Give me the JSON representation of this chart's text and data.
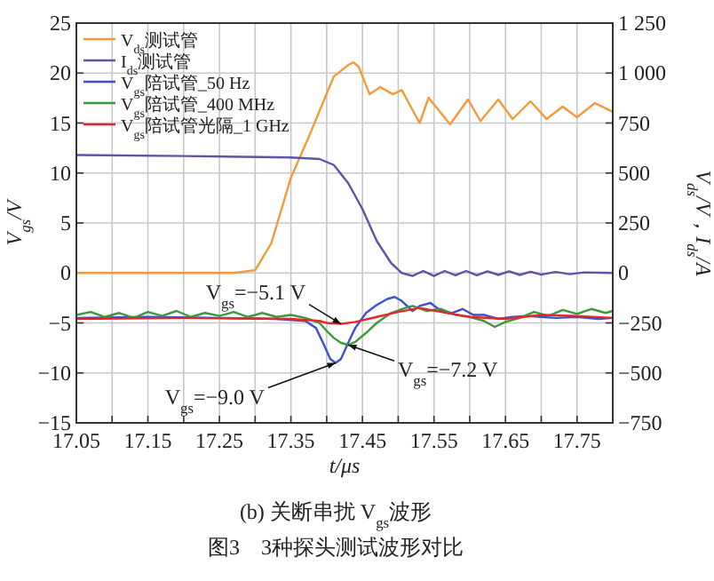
{
  "chart_data": {
    "type": "line",
    "xlabel": "t/μs",
    "ylabel": "V$_{gs}$/V",
    "y2label": "V$_{ds}$/V，I$_{ds}$/A",
    "xlim": [
      17.05,
      17.8
    ],
    "xticks": [
      17.05,
      {
        "value": 17.1,
        "label": null
      },
      17.15,
      {
        "value": 17.2,
        "label": null
      },
      17.25,
      {
        "value": 17.3,
        "label": null
      },
      17.35,
      {
        "value": 17.4,
        "label": null
      },
      17.45,
      {
        "value": 17.5,
        "label": null
      },
      17.55,
      {
        "value": 17.6,
        "label": null
      },
      17.65,
      {
        "value": 17.7,
        "label": null
      },
      17.75
    ],
    "ylim": [
      -15,
      25
    ],
    "yticks": [
      {
        "value": -15,
        "label": "−15"
      },
      {
        "value": -10,
        "label": "−10"
      },
      {
        "value": -5,
        "label": "−5"
      },
      0,
      5,
      10,
      15,
      20,
      25
    ],
    "y2lim": [
      -750,
      1250
    ],
    "y2ticks": [
      {
        "value": -750,
        "label": "−750"
      },
      {
        "value": -500,
        "label": "−500"
      },
      {
        "value": -250,
        "label": "−250"
      },
      0,
      250,
      500,
      750,
      {
        "value": 1000,
        "label": "1 000"
      },
      {
        "value": 1250,
        "label": "1 250"
      }
    ],
    "grid": true,
    "legend": "top left",
    "series": [
      {
        "name": "V$_{ds}$测试管",
        "color": "#f39a3a",
        "axis": "y2",
        "x": [
          17.05,
          17.27,
          17.3,
          17.3225,
          17.35,
          17.375,
          17.41,
          17.43,
          17.4375,
          17.445,
          17.46,
          17.475,
          17.4925,
          17.505,
          17.53,
          17.5425,
          17.5725,
          17.5975,
          17.615,
          17.64,
          17.66,
          17.685,
          17.7075,
          17.73,
          17.75,
          17.775,
          17.8
        ],
        "values": [
          0,
          0,
          14,
          148,
          477,
          681,
          983,
          1040,
          1054,
          1030,
          894,
          930,
          894,
          915,
          750,
          877,
          743,
          868,
          760,
          868,
          770,
          859,
          770,
          832,
          779,
          850,
          806
        ]
      },
      {
        "name": "I$_{ds}$测试管",
        "color": "#5a55a8",
        "axis": "y2",
        "x": [
          17.05,
          17.2,
          17.35,
          17.39,
          17.41,
          17.43,
          17.45,
          17.47,
          17.49,
          17.505,
          17.52,
          17.535,
          17.55,
          17.565,
          17.58,
          17.595,
          17.61,
          17.625,
          17.64,
          17.655,
          17.67,
          17.685,
          17.7,
          17.72,
          17.74,
          17.76,
          17.8
        ],
        "values": [
          590,
          585,
          578,
          570,
          540,
          450,
          320,
          160,
          50,
          0,
          -15,
          10,
          -15,
          10,
          -12,
          10,
          -12,
          8,
          -10,
          8,
          -10,
          6,
          -8,
          5,
          -6,
          3,
          0
        ]
      },
      {
        "name": "V$_{gs}$陪试管_50 Hz",
        "color": "#3c50d0",
        "x": [
          17.05,
          17.15,
          17.25,
          17.33,
          17.37,
          17.385,
          17.395,
          17.405,
          17.4125,
          17.42,
          17.43,
          17.44,
          17.455,
          17.47,
          17.485,
          17.495,
          17.505,
          17.52,
          17.53,
          17.545,
          17.56,
          17.575,
          17.59,
          17.605,
          17.62,
          17.64,
          17.66,
          17.68,
          17.7,
          17.72,
          17.75,
          17.78,
          17.8
        ],
        "values": [
          -4.5,
          -4.4,
          -4.5,
          -4.6,
          -4.8,
          -5.5,
          -7.0,
          -8.6,
          -9.0,
          -8.6,
          -7.0,
          -5.5,
          -4.0,
          -3.2,
          -2.6,
          -2.4,
          -2.8,
          -3.8,
          -3.3,
          -3.0,
          -3.8,
          -4.0,
          -3.6,
          -4.2,
          -4.2,
          -4.6,
          -4.4,
          -4.3,
          -4.4,
          -4.5,
          -4.4,
          -4.6,
          -4.5
        ]
      },
      {
        "name": "V$_{gs}$陪试管_400 MHz",
        "color": "#3a9a3a",
        "x": [
          17.05,
          17.07,
          17.09,
          17.11,
          17.13,
          17.15,
          17.17,
          17.19,
          17.21,
          17.23,
          17.25,
          17.27,
          17.29,
          17.31,
          17.33,
          17.35,
          17.37,
          17.39,
          17.4,
          17.41,
          17.42,
          17.43,
          17.44,
          17.455,
          17.47,
          17.49,
          17.51,
          17.52,
          17.54,
          17.56,
          17.58,
          17.6,
          17.62,
          17.635,
          17.65,
          17.67,
          17.69,
          17.71,
          17.73,
          17.75,
          17.77,
          17.79,
          17.8
        ],
        "values": [
          -4.2,
          -3.9,
          -4.4,
          -4.0,
          -4.5,
          -3.9,
          -4.3,
          -3.8,
          -4.4,
          -4.0,
          -4.3,
          -3.9,
          -4.4,
          -4.0,
          -4.4,
          -4.2,
          -4.5,
          -5.0,
          -5.8,
          -6.5,
          -7.0,
          -7.2,
          -6.9,
          -6.0,
          -5.0,
          -4.0,
          -3.5,
          -3.3,
          -3.8,
          -3.6,
          -4.2,
          -4.4,
          -4.8,
          -5.4,
          -4.9,
          -4.5,
          -3.9,
          -4.3,
          -3.7,
          -4.1,
          -3.6,
          -4.0,
          -3.8
        ]
      },
      {
        "name": "V$_{gs}$陪试管光隔_1 GHz",
        "color": "#e8262a",
        "x": [
          17.05,
          17.2,
          17.35,
          17.39,
          17.4,
          17.42,
          17.44,
          17.47,
          17.5,
          17.53,
          17.56,
          17.6,
          17.65,
          17.7,
          17.75,
          17.8
        ],
        "values": [
          -4.6,
          -4.5,
          -4.6,
          -4.8,
          -5.0,
          -5.1,
          -4.9,
          -4.4,
          -3.9,
          -3.5,
          -3.9,
          -4.4,
          -4.6,
          -4.2,
          -4.3,
          -4.5
        ]
      }
    ],
    "annotations": [
      {
        "text": "V$_{gs}$=−5.1 V",
        "x": 17.42,
        "y": -5.1
      },
      {
        "text": "V$_{gs}$=−9.0 V",
        "x": 17.4125,
        "y": -9.0
      },
      {
        "text": "V$_{gs}$=−7.2 V",
        "x": 17.43,
        "y": -7.2
      },
      "(b) 关断串扰 V$_{gs}$波形",
      "图3　3种探头测试波形对比"
    ]
  }
}
